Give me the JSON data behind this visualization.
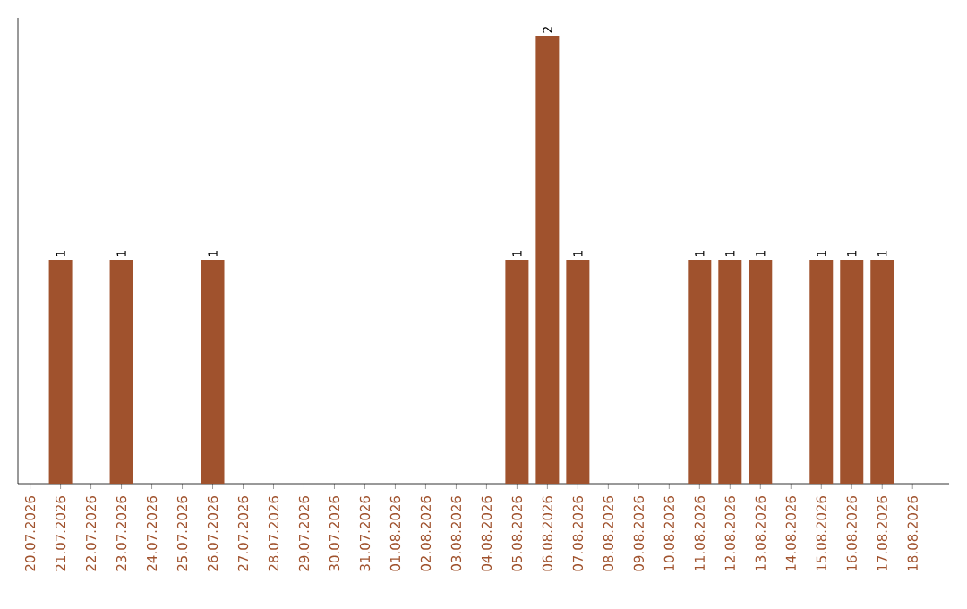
{
  "chart_data": {
    "type": "bar",
    "relative": false,
    "categories": [
      "20.07.2026",
      "21.07.2026",
      "22.07.2026",
      "23.07.2026",
      "24.07.2026",
      "25.07.2026",
      "26.07.2026",
      "27.07.2026",
      "28.07.2026",
      "29.07.2026",
      "30.07.2026",
      "31.07.2026",
      "01.08.2026",
      "02.08.2026",
      "03.08.2026",
      "04.08.2026",
      "05.08.2026",
      "06.08.2026",
      "07.08.2026",
      "08.08.2026",
      "09.08.2026",
      "10.08.2026",
      "11.08.2026",
      "12.08.2026",
      "13.08.2026",
      "14.08.2026",
      "15.08.2026",
      "16.08.2026",
      "17.08.2026",
      "18.08.2026"
    ],
    "values": [
      0,
      1,
      0,
      1,
      0,
      0,
      1,
      0,
      0,
      0,
      0,
      0,
      0,
      0,
      0,
      0,
      1,
      2,
      1,
      0,
      0,
      0,
      1,
      1,
      1,
      0,
      1,
      1,
      1,
      0
    ],
    "value_labels": [
      null,
      "1",
      null,
      "1",
      null,
      null,
      "1",
      null,
      null,
      null,
      null,
      null,
      null,
      null,
      null,
      null,
      "1",
      "2",
      "1",
      null,
      null,
      null,
      "1",
      "1",
      "1",
      null,
      "1",
      "1",
      "1",
      null
    ],
    "color": "#a0522d",
    "ylim": [
      0,
      2.08
    ]
  }
}
